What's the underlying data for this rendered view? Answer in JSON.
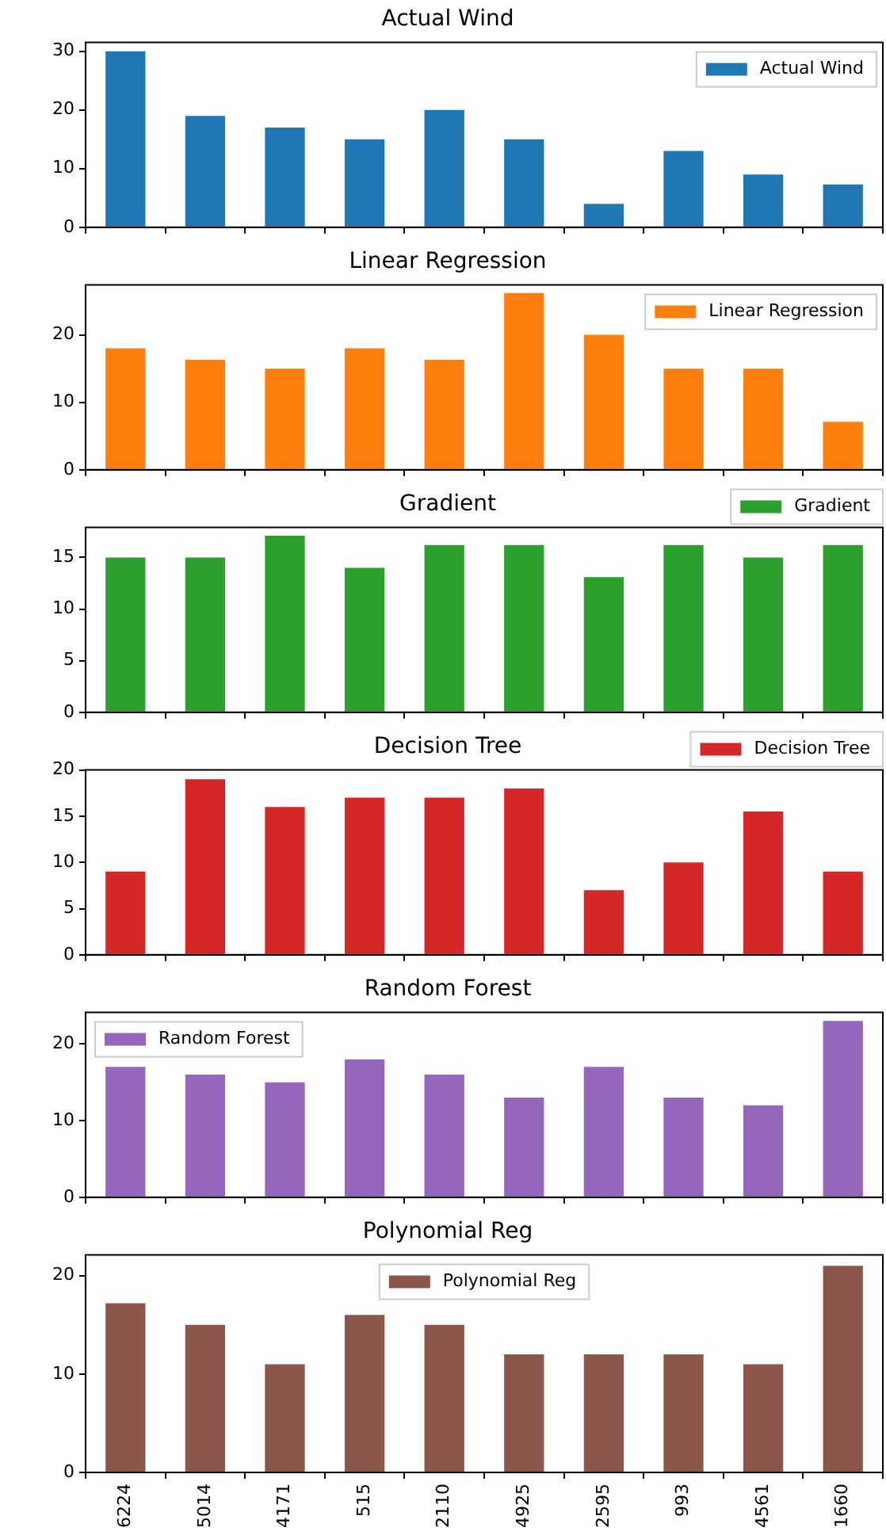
{
  "chart_data": [
    {
      "type": "bar",
      "title": "Actual Wind",
      "categories": [
        "6224",
        "5014",
        "4171",
        "515",
        "2110",
        "4925",
        "2595",
        "993",
        "4561",
        "1660"
      ],
      "series": [
        {
          "name": "Actual Wind",
          "color": "#1f77b4",
          "values": [
            30,
            19,
            17,
            15,
            20,
            15,
            4,
            13,
            9,
            7.3
          ]
        }
      ],
      "ylim": [
        0,
        31.5
      ],
      "yticks": [
        0,
        10,
        20,
        30
      ],
      "legend": "top right",
      "tick_labels": "y"
    },
    {
      "type": "bar",
      "title": "Linear Regression",
      "categories": [
        "6224",
        "5014",
        "4171",
        "515",
        "2110",
        "4925",
        "2595",
        "993",
        "4561",
        "1660"
      ],
      "series": [
        {
          "name": "Linear Regression",
          "color": "#ff7f0e",
          "values": [
            18,
            16.3,
            15,
            18,
            16.3,
            26.2,
            20,
            15,
            15,
            7.1
          ]
        }
      ],
      "ylim": [
        0,
        27.4
      ],
      "yticks": [
        0,
        10,
        20
      ],
      "legend": "top right",
      "tick_labels": "y"
    },
    {
      "type": "bar",
      "title": "Gradient",
      "categories": [
        "6224",
        "5014",
        "4171",
        "515",
        "2110",
        "4925",
        "2595",
        "993",
        "4561",
        "1660"
      ],
      "series": [
        {
          "name": "Gradient",
          "color": "#2ca02c",
          "values": [
            15,
            15,
            17.1,
            14,
            16.2,
            16.2,
            13.1,
            16.2,
            15,
            16.2
          ]
        }
      ],
      "ylim": [
        0,
        17.9
      ],
      "yticks": [
        0,
        5,
        10,
        15
      ],
      "legend": "top right",
      "tick_labels": "y"
    },
    {
      "type": "bar",
      "title": "Decision Tree",
      "categories": [
        "6224",
        "5014",
        "4171",
        "515",
        "2110",
        "4925",
        "2595",
        "993",
        "4561",
        "1660"
      ],
      "series": [
        {
          "name": "Decision Tree",
          "color": "#d62728",
          "values": [
            9,
            19,
            16,
            17,
            17,
            18,
            7,
            10,
            15.5,
            9
          ]
        }
      ],
      "ylim": [
        0,
        20
      ],
      "yticks": [
        0,
        5,
        10,
        15,
        20
      ],
      "legend": "top right",
      "tick_labels": "y"
    },
    {
      "type": "bar",
      "title": "Random Forest",
      "categories": [
        "6224",
        "5014",
        "4171",
        "515",
        "2110",
        "4925",
        "2595",
        "993",
        "4561",
        "1660"
      ],
      "series": [
        {
          "name": "Random Forest",
          "color": "#9467bd",
          "values": [
            17,
            16,
            15,
            18,
            16,
            13,
            17,
            13,
            12,
            23
          ]
        }
      ],
      "ylim": [
        0,
        24.1
      ],
      "yticks": [
        0,
        10,
        20
      ],
      "legend": "top left",
      "tick_labels": "y"
    },
    {
      "type": "bar",
      "title": "Polynomial Reg",
      "categories": [
        "6224",
        "5014",
        "4171",
        "515",
        "2110",
        "4925",
        "2595",
        "993",
        "4561",
        "1660"
      ],
      "series": [
        {
          "name": "Polynomial Reg",
          "color": "#8c564b",
          "values": [
            17.2,
            15,
            11,
            16,
            15,
            12,
            12,
            12,
            11,
            21
          ]
        }
      ],
      "ylim": [
        0,
        22.1
      ],
      "yticks": [
        0,
        10,
        20
      ],
      "legend": "top"
    }
  ]
}
